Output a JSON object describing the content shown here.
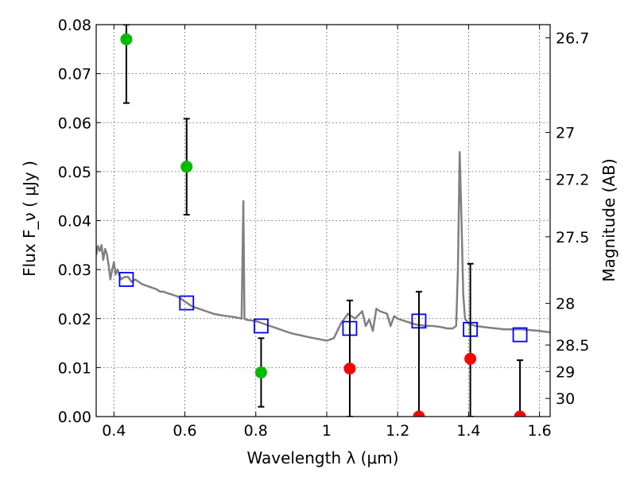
{
  "chart_data": {
    "type": "scatter",
    "xlabel": "Wavelength  λ (μm)",
    "ylabel": "Flux  F_ν  ( μJy )",
    "ylabel_right": "Magnitude (AB)",
    "xlim": [
      0.35,
      1.63
    ],
    "ylim": [
      0.0,
      0.08
    ],
    "grid": true,
    "x_ticks": [
      0.4,
      0.6,
      0.8,
      1.0,
      1.2,
      1.4,
      1.6
    ],
    "x_tick_labels": [
      "0.4",
      "0.6",
      "0.8",
      "1",
      "1.2",
      "1.4",
      "1.6"
    ],
    "y_ticks": [
      0.0,
      0.01,
      0.02,
      0.03,
      0.04,
      0.05,
      0.06,
      0.07,
      0.08
    ],
    "y_tick_labels": [
      "0.00",
      "0.01",
      "0.02",
      "0.03",
      "0.04",
      "0.05",
      "0.06",
      "0.07",
      "0.08"
    ],
    "right_ticks": [
      {
        "label": "26.7",
        "flux": 0.0773
      },
      {
        "label": "27",
        "flux": 0.058
      },
      {
        "label": "27.2",
        "flux": 0.0484
      },
      {
        "label": "27.5",
        "flux": 0.0367
      },
      {
        "label": "28",
        "flux": 0.0231
      },
      {
        "label": "28.5",
        "flux": 0.0146
      },
      {
        "label": "29",
        "flux": 0.0092
      },
      {
        "label": "30",
        "flux": 0.0037
      }
    ],
    "series": [
      {
        "kind": "line",
        "color": "#808080",
        "x": [
          0.35,
          0.355,
          0.36,
          0.365,
          0.37,
          0.375,
          0.38,
          0.385,
          0.39,
          0.395,
          0.4,
          0.405,
          0.41,
          0.42,
          0.43,
          0.44,
          0.45,
          0.46,
          0.47,
          0.48,
          0.5,
          0.52,
          0.53,
          0.54,
          0.55,
          0.56,
          0.58,
          0.6,
          0.62,
          0.64,
          0.66,
          0.68,
          0.7,
          0.72,
          0.74,
          0.76,
          0.765,
          0.768,
          0.772,
          0.78,
          0.8,
          0.82,
          0.84,
          0.86,
          0.88,
          0.9,
          0.95,
          1.0,
          1.02,
          1.04,
          1.06,
          1.08,
          1.1,
          1.11,
          1.12,
          1.13,
          1.14,
          1.15,
          1.17,
          1.18,
          1.19,
          1.2,
          1.22,
          1.25,
          1.28,
          1.3,
          1.32,
          1.34,
          1.355,
          1.365,
          1.37,
          1.375,
          1.38,
          1.385,
          1.39,
          1.4,
          1.42,
          1.45,
          1.5,
          1.55,
          1.6,
          1.63
        ],
        "y": [
          0.033,
          0.0348,
          0.0338,
          0.035,
          0.032,
          0.0342,
          0.0332,
          0.031,
          0.028,
          0.03,
          0.0315,
          0.029,
          0.03,
          0.028,
          0.0285,
          0.0285,
          0.0275,
          0.028,
          0.0275,
          0.027,
          0.0265,
          0.026,
          0.0255,
          0.0255,
          0.0252,
          0.025,
          0.0245,
          0.0235,
          0.0225,
          0.022,
          0.0215,
          0.021,
          0.0207,
          0.0205,
          0.0203,
          0.02,
          0.044,
          0.02,
          0.0198,
          0.0197,
          0.0195,
          0.019,
          0.0185,
          0.018,
          0.0175,
          0.017,
          0.0162,
          0.0155,
          0.016,
          0.019,
          0.021,
          0.02,
          0.0215,
          0.0185,
          0.0198,
          0.0175,
          0.022,
          0.0215,
          0.021,
          0.0185,
          0.0205,
          0.02,
          0.0195,
          0.0188,
          0.0185,
          0.0185,
          0.0183,
          0.018,
          0.018,
          0.0185,
          0.03,
          0.054,
          0.04,
          0.025,
          0.02,
          0.019,
          0.0185,
          0.0182,
          0.0178,
          0.0178,
          0.0175,
          0.0172
        ]
      },
      {
        "kind": "markers",
        "marker": "open-square",
        "color": "#0000ff",
        "x": [
          0.435,
          0.605,
          0.815,
          1.065,
          1.26,
          1.405,
          1.545
        ],
        "y": [
          0.028,
          0.0232,
          0.0185,
          0.018,
          0.0195,
          0.0178,
          0.0167
        ]
      },
      {
        "kind": "markers",
        "marker": "circle",
        "color": "#00bb00",
        "x": [
          0.435,
          0.605,
          0.815
        ],
        "y": [
          0.077,
          0.051,
          0.009
        ],
        "yerr_low": [
          0.064,
          0.0412,
          0.002
        ],
        "yerr_high": [
          0.08,
          0.0608,
          0.016
        ]
      },
      {
        "kind": "markers",
        "marker": "circle",
        "color": "#ff0000",
        "x": [
          1.065,
          1.26,
          1.405,
          1.545
        ],
        "y": [
          0.0098,
          0.0,
          0.0118,
          0.0
        ],
        "yerr_low": [
          0.0,
          0.0,
          0.0,
          0.0
        ],
        "yerr_high": [
          0.0237,
          0.0255,
          0.0312,
          0.0115
        ]
      }
    ]
  }
}
